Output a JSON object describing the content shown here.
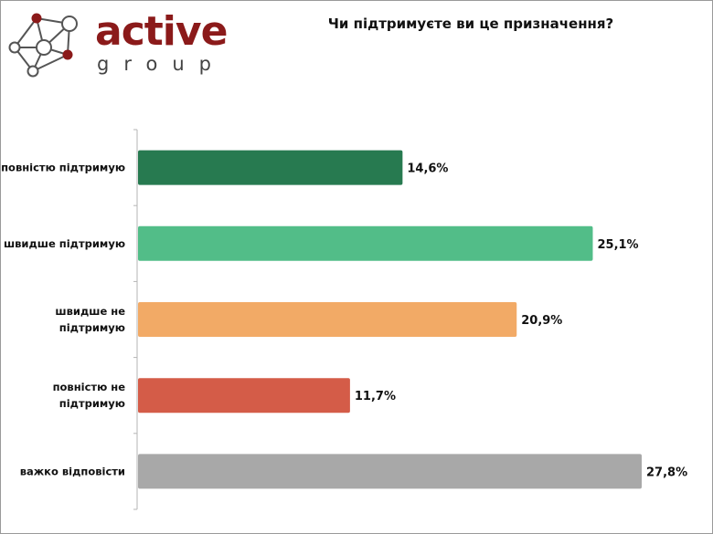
{
  "logo": {
    "word": "active",
    "subword": "group",
    "brand_color": "#8b1a1a"
  },
  "chart_data": {
    "type": "bar",
    "orientation": "horizontal",
    "title": "Чи підтримуєте ви це призначення?",
    "categories": [
      [
        "повністю підтримую"
      ],
      [
        "швидше підтримую"
      ],
      [
        "швидше не",
        "підтримую"
      ],
      [
        "повністю не",
        "підтримую"
      ],
      [
        "важко відповісти"
      ]
    ],
    "values": [
      14.6,
      25.1,
      20.9,
      11.7,
      27.8
    ],
    "value_labels": [
      "14,6%",
      "25,1%",
      "20,9%",
      "11,7%",
      "27,8%"
    ],
    "colors": [
      "#277a50",
      "#52bd88",
      "#f2aa66",
      "#d45c48",
      "#a8a8a8"
    ],
    "xlabel": "",
    "ylabel": "",
    "xlim": [
      0,
      28
    ],
    "grid": false,
    "legend": "none"
  }
}
